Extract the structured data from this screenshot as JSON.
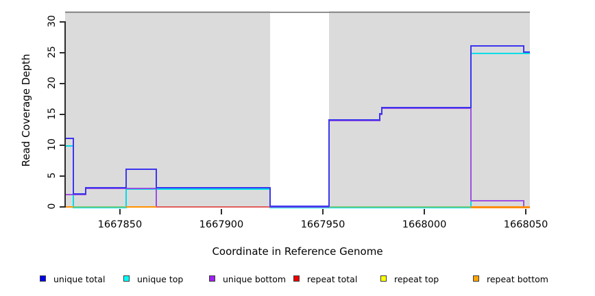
{
  "y_axis_title": "Read Coverage Depth",
  "x_axis_title": "Coordinate in Reference Genome",
  "legend": {
    "items": [
      {
        "label": "unique total",
        "color": "#0000EE"
      },
      {
        "label": "unique top",
        "color": "#00FFFF"
      },
      {
        "label": "unique bottom",
        "color": "#A020F0"
      },
      {
        "label": "repeat total",
        "color": "#EE0000"
      },
      {
        "label": "repeat top",
        "color": "#FFFF00"
      },
      {
        "label": "repeat bottom",
        "color": "#FFA500"
      }
    ]
  },
  "chart_data": {
    "type": "line",
    "subtype": "step",
    "title": "",
    "xlabel": "Coordinate in Reference Genome",
    "ylabel": "Read Coverage Depth",
    "x_range": [
      1667823,
      1668052
    ],
    "y_range": [
      0,
      31.8
    ],
    "x_ticks": [
      1667850,
      1667900,
      1667950,
      1668000,
      1668050
    ],
    "y_ticks": [
      0,
      5,
      10,
      15,
      20,
      25,
      30
    ],
    "grid": false,
    "legend_position": "bottom",
    "background_band": {
      "color": "#DBDBDB",
      "top_value": 31.8,
      "border_color": "#8F8F8F"
    },
    "coverage_gap_region": {
      "x_start": 1667924,
      "x_end": 1667953
    },
    "shaded_regions": [
      {
        "x_start": 1667823,
        "x_end": 1667924
      },
      {
        "x_start": 1667953,
        "x_end": 1668052
      }
    ],
    "series": [
      {
        "name": "unique top",
        "color": "#00DDE5",
        "y_offset": 1,
        "steps": [
          [
            1667823,
            10
          ],
          [
            1667827,
            0
          ],
          [
            1667853,
            3
          ],
          [
            1667924,
            0
          ],
          [
            1668023,
            25
          ],
          [
            1668052,
            25
          ]
        ]
      },
      {
        "name": "unique bottom",
        "color": "#9D4EE0",
        "y_offset": 0,
        "steps": [
          [
            1667823,
            2
          ],
          [
            1667833,
            3
          ],
          [
            1667868,
            0
          ],
          [
            1667953,
            14
          ],
          [
            1667978,
            15
          ],
          [
            1667979,
            16
          ],
          [
            1668023,
            1
          ],
          [
            1668049,
            0
          ],
          [
            1668052,
            0
          ]
        ]
      },
      {
        "name": "unique total",
        "color": "#3B35EE",
        "y_offset": -1,
        "draw_after_baseline": true,
        "steps": [
          [
            1667823,
            11
          ],
          [
            1667827,
            2
          ],
          [
            1667833,
            3
          ],
          [
            1667853,
            6
          ],
          [
            1667868,
            3
          ],
          [
            1667924,
            0
          ],
          [
            1667953,
            14
          ],
          [
            1667978,
            15
          ],
          [
            1667979,
            16
          ],
          [
            1668023,
            26
          ],
          [
            1668049,
            25
          ],
          [
            1668052,
            25
          ]
        ]
      }
    ],
    "baseline_segments": [
      {
        "x_start": 1667823,
        "x_end": 1667827,
        "color": "#FF9100",
        "thickness": 2
      },
      {
        "x_start": 1667827,
        "x_end": 1667853,
        "color": "#7DC97D",
        "thickness": 2
      },
      {
        "x_start": 1667853,
        "x_end": 1667868,
        "color": "#FF9100",
        "thickness": 2
      },
      {
        "x_start": 1667868,
        "x_end": 1667924,
        "color": "#E25D5D",
        "thickness": 2
      },
      {
        "x_start": 1667953,
        "x_end": 1668023,
        "color": "#7DC97D",
        "thickness": 2
      },
      {
        "x_start": 1668023,
        "x_end": 1668052,
        "color": "#FF8C00",
        "thickness": 3
      }
    ]
  }
}
